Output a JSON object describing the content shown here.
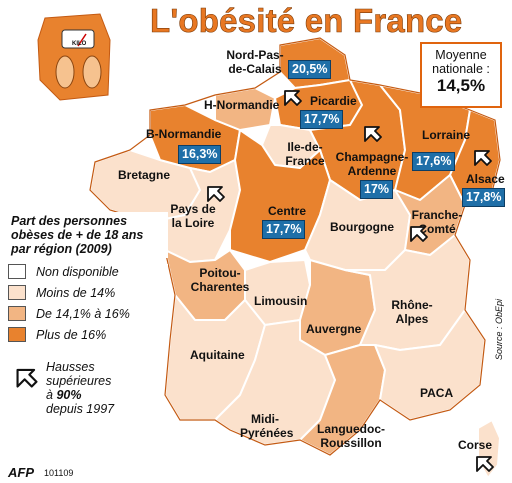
{
  "title": "L'obésité en France",
  "moyenne": {
    "label": "Moyenne nationale :",
    "value": "14,5%"
  },
  "legend": {
    "title": "Part des personnes obèses de + de 18 ans par région (2009)",
    "items": [
      {
        "label": "Non disponible",
        "color": "#ffffff"
      },
      {
        "label": "Moins de 14%",
        "color": "#fbe1cc"
      },
      {
        "label": "De 14,1% à 16%",
        "color": "#f2b583"
      },
      {
        "label": "Plus de 16%",
        "color": "#e8822e"
      }
    ]
  },
  "hausse": {
    "line1": "Hausses",
    "line2": "supérieures",
    "line3_pre": "à ",
    "line3_bold": "90%",
    "line4": "depuis 1997"
  },
  "source": "Source : ObEpi",
  "agency": "AFP",
  "date": "101109",
  "regions": {
    "nord": {
      "name": "Nord-Pas-de-Calais",
      "value": "20,5%"
    },
    "picardie": {
      "name": "Picardie",
      "value": "17,7%"
    },
    "hnormandie": {
      "name": "H-Normandie"
    },
    "bnormandie": {
      "name": "B-Normandie",
      "value": "16,3%"
    },
    "idf": {
      "name": "Ile-de-France"
    },
    "champagne": {
      "name": "Champagne-Ardenne",
      "value": "17%"
    },
    "lorraine": {
      "name": "Lorraine",
      "value": "17,6%"
    },
    "alsace": {
      "name": "Alsace",
      "value": "17,8%"
    },
    "bretagne": {
      "name": "Bretagne"
    },
    "pdl": {
      "name": "Pays de la Loire"
    },
    "centre": {
      "name": "Centre",
      "value": "17,7%"
    },
    "bourgogne": {
      "name": "Bourgogne"
    },
    "franche": {
      "name": "Franche-Comté"
    },
    "poitou": {
      "name": "Poitou-Charentes"
    },
    "limousin": {
      "name": "Limousin"
    },
    "auvergne": {
      "name": "Auvergne"
    },
    "rhone": {
      "name": "Rhône-Alpes"
    },
    "aquitaine": {
      "name": "Aquitaine"
    },
    "midi": {
      "name": "Midi-Pyrénées"
    },
    "languedoc": {
      "name": "Languedoc-Roussillon"
    },
    "paca": {
      "name": "PACA"
    },
    "corse": {
      "name": "Corse"
    }
  },
  "scale_icon": {
    "label": "KILO"
  },
  "colors": {
    "title": "#e87722",
    "value_box": "#1f6fa8",
    "border": "#c45a12"
  }
}
